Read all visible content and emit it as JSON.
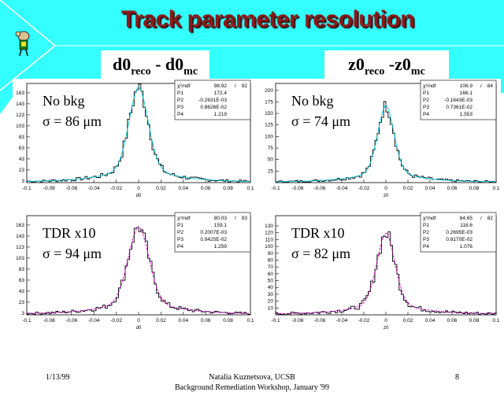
{
  "slide": {
    "title": "Track parameter resolution",
    "col_left": {
      "main": "d0",
      "sub1": "reco",
      "mid": " -  d0",
      "sub2": "mc"
    },
    "col_right": {
      "main": "z0",
      "sub1": "reco",
      "mid": " -z0",
      "sub2": "mc"
    },
    "footer": {
      "date": "1/13/99",
      "author": "Natalia Kuznetsova, UCSB",
      "workshop": "Background Remediation Workshop, January '99",
      "page": "8"
    },
    "colors": {
      "bg_cyan": "#33ffff",
      "title_red": "#8b1a1a",
      "fit_cyan": "#00c8d8",
      "fit_magenta": "#d000c8"
    }
  },
  "chart_data": [
    {
      "type": "histogram",
      "label_line1": "No bkg",
      "label_line2": "σ = 86 μm",
      "stats": [
        [
          "χ²/ndf",
          "98.92",
          "/",
          "92"
        ],
        [
          "P1",
          "172.4",
          "",
          ""
        ],
        [
          "P2",
          "-0.2631E-03",
          "",
          ""
        ],
        [
          "P3",
          "0.8626E-02",
          "",
          ""
        ],
        [
          "P4",
          "1.219",
          "",
          ""
        ]
      ],
      "xlabel": "d0",
      "xlim": [
        -0.1,
        0.1
      ],
      "ylim": [
        0,
        180
      ],
      "xticks": [
        "-0.1",
        "-0.08",
        "-0.06",
        "-0.04",
        "-0.02",
        "0",
        "0.02",
        "0.04",
        "0.06",
        "0.08",
        "0.1"
      ],
      "yticks": [
        "3",
        "23",
        "43",
        "63",
        "83",
        "103",
        "123",
        "143",
        "163"
      ],
      "peak": 172.4,
      "sigma": 0.0086,
      "background": 1.219,
      "fit_color": "cyan"
    },
    {
      "type": "histogram",
      "label_line1": "No bkg",
      "label_line2": "σ = 74 μm",
      "stats": [
        [
          "χ²/ndf",
          "106.9",
          "/",
          "84"
        ],
        [
          "P1",
          "166.1",
          "",
          ""
        ],
        [
          "P2",
          "-0.1643E-03",
          "",
          ""
        ],
        [
          "P3",
          "0.7361E-02",
          "",
          ""
        ],
        [
          "P4",
          "1.553",
          "",
          ""
        ]
      ],
      "xlabel": "z0",
      "xlim": [
        -0.1,
        0.1
      ],
      "ylim": [
        0,
        215
      ],
      "xticks": [
        "-0.1",
        "-0.08",
        "-0.06",
        "-0.04",
        "-0.02",
        "0",
        "0.02",
        "0.04",
        "0.06",
        "0.08",
        "0.1"
      ],
      "yticks": [
        "25",
        "50",
        "75",
        "100",
        "125",
        "150",
        "175",
        "200"
      ],
      "peak": 166.1,
      "sigma": 0.0074,
      "background": 1.553,
      "fit_color": "cyan"
    },
    {
      "type": "histogram",
      "label_line1": "TDR x10",
      "label_line2": "σ = 94 μm",
      "stats": [
        [
          "χ²/ndf",
          "80.03",
          "/",
          "93"
        ],
        [
          "P1",
          "159.1",
          "",
          ""
        ],
        [
          "P2",
          "0.2007E-03",
          "",
          ""
        ],
        [
          "P3",
          "0.9425E-02",
          "",
          ""
        ],
        [
          "P4",
          "1.259",
          "",
          ""
        ]
      ],
      "xlabel": "d0",
      "xlim": [
        -0.1,
        0.1
      ],
      "ylim": [
        0,
        180
      ],
      "xticks": [
        "-0.1",
        "-0.08",
        "-0.06",
        "-0.04",
        "-0.02",
        "0",
        "0.02",
        "0.04",
        "0.06",
        "0.08",
        "0.1"
      ],
      "yticks": [
        "3",
        "23",
        "43",
        "63",
        "83",
        "103",
        "123",
        "143",
        "163"
      ],
      "peak": 159.1,
      "sigma": 0.0094,
      "background": 1.259,
      "fit_color": "magenta"
    },
    {
      "type": "histogram",
      "label_line1": "TDR x10",
      "label_line2": "σ = 82 μm",
      "stats": [
        [
          "χ²/ndf",
          "84.65",
          "/",
          "82"
        ],
        [
          "P1",
          "118.6",
          "",
          ""
        ],
        [
          "P2",
          "0.2695E-03",
          "",
          ""
        ],
        [
          "P3",
          "0.8170E-02",
          "",
          ""
        ],
        [
          "P4",
          "1.076",
          "",
          ""
        ]
      ],
      "xlabel": "z0",
      "xlim": [
        -0.1,
        0.1
      ],
      "ylim": [
        0,
        145
      ],
      "xticks": [
        "-0.1",
        "-0.08",
        "-0.06",
        "-0.04",
        "-0.02",
        "0",
        "0.02",
        "0.04",
        "0.06",
        "0.08",
        "0.1"
      ],
      "yticks": [
        "10",
        "20",
        "30",
        "40",
        "50",
        "60",
        "70",
        "80",
        "90",
        "100",
        "110",
        "120",
        "130"
      ],
      "peak": 118.6,
      "sigma": 0.0082,
      "background": 1.076,
      "fit_color": "magenta"
    }
  ]
}
